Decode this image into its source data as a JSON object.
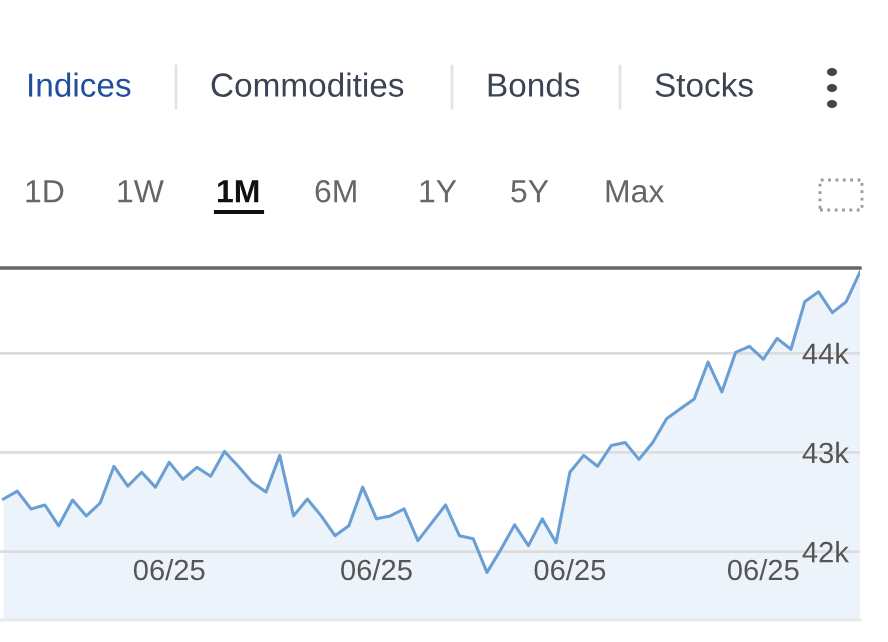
{
  "chart_data": {
    "type": "area",
    "annotations": [
      "Indices",
      "Commodities",
      "Bonds",
      "Stocks",
      "1D",
      "1W",
      "1M",
      "6M",
      "1Y",
      "5Y",
      "Max"
    ],
    "categories": [
      null,
      null,
      null,
      null,
      null,
      null,
      null,
      null,
      null,
      null,
      null,
      null,
      "06/25",
      null,
      null,
      null,
      null,
      null,
      null,
      null,
      null,
      null,
      null,
      null,
      null,
      null,
      null,
      "06/25",
      null,
      null,
      null,
      null,
      null,
      null,
      null,
      null,
      null,
      null,
      null,
      null,
      null,
      "06/25",
      null,
      null,
      null,
      null,
      null,
      null,
      null,
      null,
      null,
      null,
      null,
      null,
      null,
      "06/25",
      null,
      null,
      null,
      null,
      null,
      null,
      null
    ],
    "series": [
      {
        "color": "#6a9fd4",
        "values": [
          42.53,
          42.61,
          42.43,
          42.47,
          42.26,
          42.52,
          42.36,
          42.49,
          42.86,
          42.66,
          42.8,
          42.65,
          42.9,
          42.73,
          42.85,
          42.76,
          43.01,
          42.86,
          42.7,
          42.6,
          42.97,
          42.36,
          42.53,
          42.36,
          42.16,
          42.26,
          42.65,
          42.33,
          42.36,
          42.43,
          42.11,
          42.29,
          42.47,
          42.16,
          42.13,
          41.79,
          42.02,
          42.27,
          42.06,
          42.33,
          42.09,
          42.8,
          42.97,
          42.86,
          43.07,
          43.1,
          42.93,
          43.1,
          43.34,
          43.44,
          43.54,
          43.91,
          43.61,
          44.01,
          44.07,
          43.94,
          44.15,
          44.04,
          44.52,
          44.62,
          44.41,
          44.52,
          44.82
        ]
      }
    ],
    "ylim": [
      41.31,
      44.86
    ],
    "yticks": [
      {
        "value": 42,
        "label": "42k"
      },
      {
        "value": 43,
        "label": "43k"
      },
      {
        "value": 44,
        "label": "44k"
      }
    ],
    "grid": "y",
    "legend": false
  }
}
